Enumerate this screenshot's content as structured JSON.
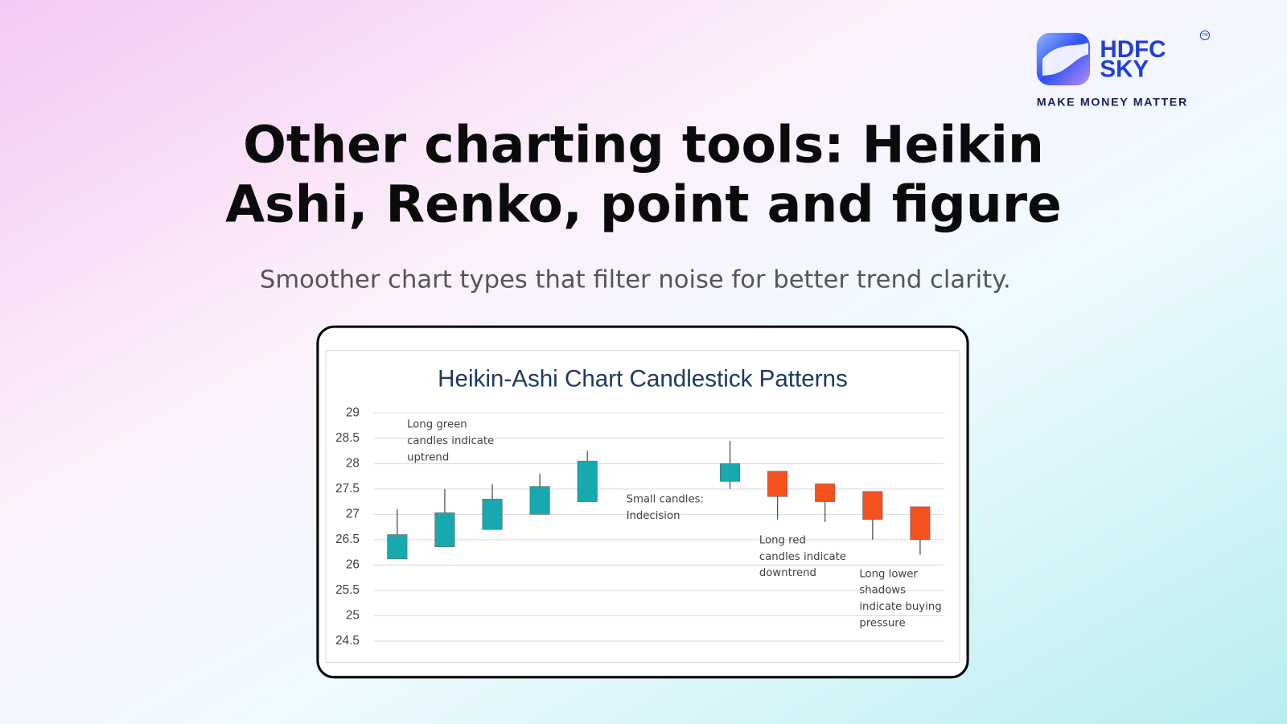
{
  "brand": {
    "name_line1": "HDFC",
    "name_line2": "SKY",
    "trademark": "TM",
    "tagline": "MAKE MONEY MATTER"
  },
  "title_lines": [
    "Other charting tools: Heikin",
    "Ashi, Renko, point and figure"
  ],
  "subtitle": "Smoother chart types that filter noise for better trend clarity.",
  "chart_data": {
    "type": "candlestick",
    "title": "Heikin-Ashi Chart Candlestick Patterns",
    "categories": [
      null,
      null,
      null,
      null,
      null,
      null,
      null,
      null,
      null,
      null,
      null,
      null
    ],
    "open": [
      26.12,
      26.36,
      26.7,
      27.0,
      27.25,
      null,
      null,
      27.65,
      27.85,
      27.6,
      27.45,
      27.15
    ],
    "high": [
      27.1,
      27.5,
      27.6,
      27.8,
      28.25,
      null,
      null,
      28.45,
      27.85,
      27.6,
      27.45,
      27.15
    ],
    "low": [
      26.12,
      26.36,
      26.7,
      27.0,
      27.25,
      null,
      null,
      27.5,
      26.9,
      26.85,
      26.5,
      26.2
    ],
    "close": [
      26.6,
      27.03,
      27.3,
      27.55,
      28.05,
      null,
      null,
      28.0,
      27.35,
      27.25,
      26.9,
      26.5
    ],
    "up_color": "#17a9ad",
    "down_color": "#f4511e",
    "ylim": [
      24.5,
      29
    ],
    "yticks": [
      24.5,
      25,
      25.5,
      26,
      26.5,
      27,
      27.5,
      28,
      28.5,
      29
    ],
    "grid": true,
    "annotations": [
      {
        "lines": [
          "Long green",
          "candles indicate",
          "uptrend"
        ]
      },
      {
        "lines": [
          "Small candles:",
          "Indecision"
        ]
      },
      {
        "lines": [
          "Long red",
          "candles indicate",
          "downtrend"
        ]
      },
      {
        "lines": [
          "Long lower",
          "shadows",
          "indicate buying",
          "pressure"
        ]
      }
    ]
  }
}
